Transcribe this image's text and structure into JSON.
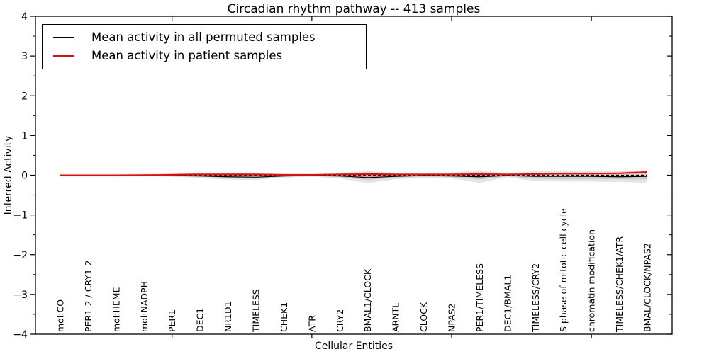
{
  "title": "Circadian rhythm pathway -- 413 samples",
  "chart_data": {
    "type": "line",
    "title": "Circadian rhythm pathway -- 413 samples",
    "xlabel": "Cellular Entities",
    "ylabel": "Inferred Activity",
    "ylim": [
      -4,
      4
    ],
    "y_ticks": [
      -4,
      -3,
      -2,
      -1,
      0,
      1,
      2,
      3,
      4
    ],
    "y_minor_tick_step": 0.5,
    "x_major_tick_categories": [
      "PER1",
      "ATR",
      "NPAS2",
      "chromatin modification"
    ],
    "grid": false,
    "legend_position": "upper left",
    "categories": [
      "mol:CO",
      "PER1-2 / CRY1-2",
      "mol:HEME",
      "mol:NADPH",
      "PER1",
      "DEC1",
      "NR1D1",
      "TIMELESS",
      "CHEK1",
      "ATR",
      "CRY2",
      "BMAL1/CLOCK",
      "ARNTL",
      "CLOCK",
      "NPAS2",
      "PER1/TIMELESS",
      "DEC1/BMAL1",
      "TIMELESS/CRY2",
      "S phase of mitotic cell cycle",
      "chromatin modification",
      "TIMELESS/CHEK1/ATR",
      "BMAL/CLOCK/NPAS2"
    ],
    "series": [
      {
        "name": "Mean activity in all permuted samples",
        "color": "#000000",
        "style": "solid",
        "values": [
          0,
          0,
          0,
          -0.005,
          -0.01,
          -0.02,
          -0.04,
          -0.05,
          -0.02,
          -0.01,
          -0.02,
          -0.06,
          -0.03,
          -0.01,
          -0.02,
          -0.04,
          -0.01,
          -0.03,
          -0.03,
          -0.03,
          -0.04,
          -0.03
        ]
      },
      {
        "name": "Mean activity in patient samples",
        "color": "#ff0000",
        "style": "solid",
        "values": [
          0,
          0,
          0,
          0.005,
          0.01,
          0.02,
          0.02,
          0.02,
          0.01,
          0.01,
          0.02,
          0.03,
          0.02,
          0.02,
          0.02,
          0.03,
          0.02,
          0.03,
          0.04,
          0.04,
          0.05,
          0.08
        ]
      }
    ],
    "bands": [
      {
        "name": "permuted-std-outer",
        "color": "rgba(0,0,0,0.10)",
        "upper": [
          0.01,
          0.01,
          0.01,
          0.02,
          0.03,
          0.05,
          0.07,
          0.07,
          0.04,
          0.03,
          0.06,
          0.1,
          0.06,
          0.04,
          0.07,
          0.13,
          0.04,
          0.1,
          0.1,
          0.1,
          0.11,
          0.13
        ],
        "lower": [
          -0.01,
          -0.01,
          -0.01,
          -0.02,
          -0.04,
          -0.07,
          -0.11,
          -0.12,
          -0.06,
          -0.04,
          -0.08,
          -0.2,
          -0.1,
          -0.06,
          -0.08,
          -0.19,
          -0.05,
          -0.15,
          -0.16,
          -0.16,
          -0.17,
          -0.19
        ]
      },
      {
        "name": "permuted-std-inner",
        "color": "rgba(0,0,0,0.10)",
        "upper": [
          0.005,
          0.005,
          0.005,
          0.01,
          0.02,
          0.03,
          0.04,
          0.04,
          0.02,
          0.02,
          0.04,
          0.06,
          0.04,
          0.02,
          0.04,
          0.08,
          0.02,
          0.06,
          0.06,
          0.06,
          0.07,
          0.08
        ],
        "lower": [
          -0.005,
          -0.005,
          -0.005,
          -0.01,
          -0.02,
          -0.04,
          -0.07,
          -0.07,
          -0.04,
          -0.02,
          -0.05,
          -0.12,
          -0.06,
          -0.04,
          -0.05,
          -0.11,
          -0.03,
          -0.09,
          -0.1,
          -0.1,
          -0.1,
          -0.11
        ]
      },
      {
        "name": "patient-std",
        "color": "rgba(255,0,0,0.28)",
        "upper": [
          0.003,
          0.003,
          0.005,
          0.01,
          0.04,
          0.05,
          0.05,
          0.04,
          0.02,
          0.02,
          0.04,
          0.07,
          0.03,
          0.03,
          0.03,
          0.05,
          0.03,
          0.04,
          0.05,
          0.05,
          0.06,
          0.1
        ],
        "lower": [
          -0.003,
          -0.003,
          -0.005,
          -0.01,
          -0.03,
          -0.03,
          -0.02,
          -0.02,
          -0.01,
          -0.01,
          -0.02,
          -0.04,
          -0.01,
          0,
          -0.01,
          -0.01,
          0,
          0.01,
          0.02,
          0.02,
          0.03,
          0.05
        ]
      }
    ],
    "zero_line": {
      "y": 0,
      "style": "dashed",
      "color": "#000000"
    }
  }
}
